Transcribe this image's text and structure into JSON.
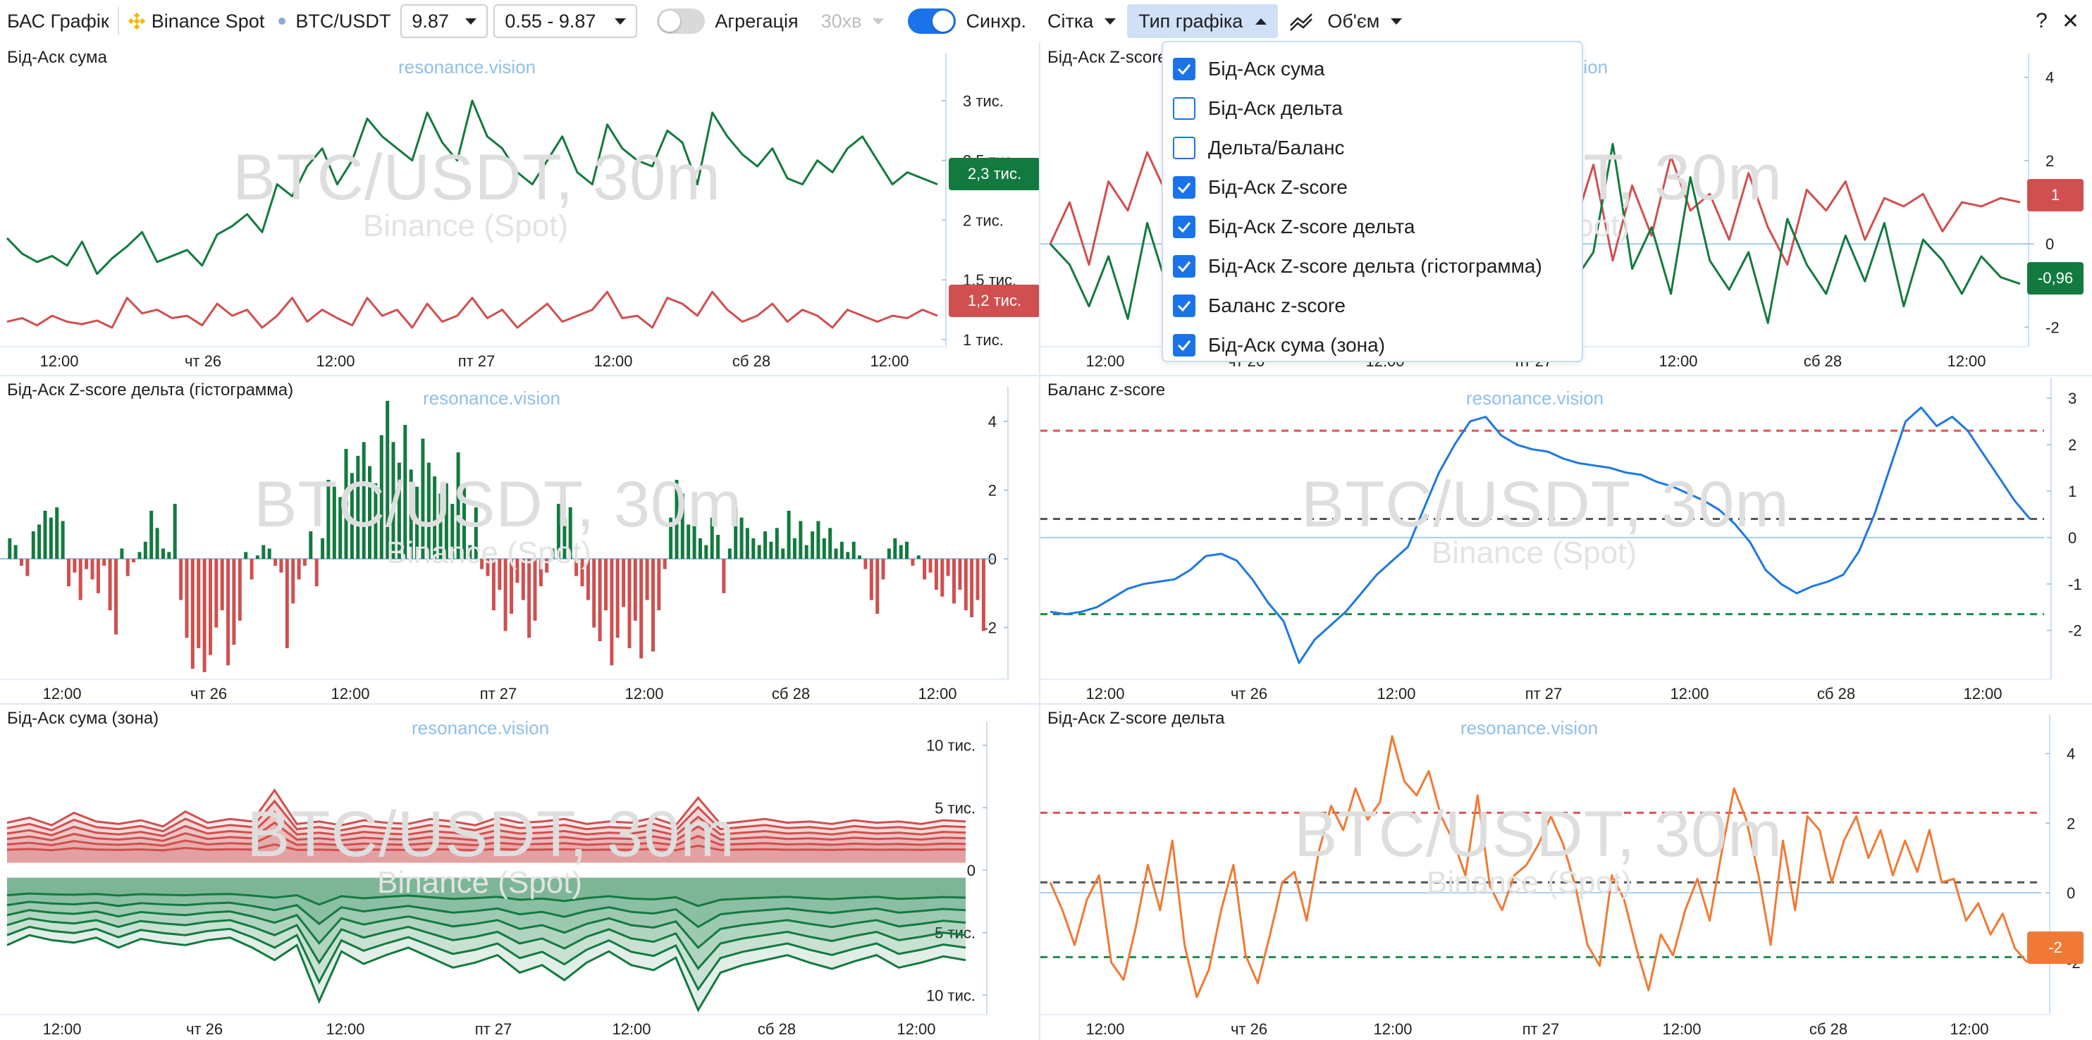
{
  "toolbar": {
    "app_title": "БАС Графік",
    "exchange": "Binance Spot",
    "symbol": "BTC/USDT",
    "value_select": "9.87",
    "range_select": "0.55 - 9.87",
    "aggregation_label": "Агрегація",
    "aggregation_value": "30хв",
    "sync_label": "Синхр.",
    "grid_label": "Сітка",
    "chart_type_label": "Тип графіка",
    "volume_label": "Об'єм",
    "help_label": "?",
    "close_label": "✕"
  },
  "dropdown": {
    "items": [
      {
        "label": "Бід-Аск сума",
        "checked": true
      },
      {
        "label": "Бід-Аск дельта",
        "checked": false
      },
      {
        "label": "Дельта/Баланс",
        "checked": false
      },
      {
        "label": "Бід-Аск Z-score",
        "checked": true
      },
      {
        "label": "Бід-Аск Z-score дельта",
        "checked": true
      },
      {
        "label": "Бід-Аск Z-score дельта (гістограмма)",
        "checked": true
      },
      {
        "label": "Баланс z-score",
        "checked": true
      },
      {
        "label": "Бід-Аск сума (зона)",
        "checked": true
      }
    ]
  },
  "watermark": {
    "site": "resonance.vision",
    "pair": "BTC/USDT, 30m",
    "exchange": "Binance (Spot)"
  },
  "colors": {
    "green": "#137a3f",
    "red": "#d04f4f",
    "blue": "#1e78e0",
    "orange": "#f07a35",
    "accent": "#1a73e8"
  },
  "panels": [
    {
      "title": "Бід-Аск сума",
      "badges": [
        "2,3 тис.",
        "1,2 тис."
      ]
    },
    {
      "title": "Бід-Аск Z-score",
      "badges": [
        "1",
        "-0,96"
      ]
    },
    {
      "title": "Бід-Аск Z-score дельта (гістограмма)",
      "badges": []
    },
    {
      "title": "Баланс z-score",
      "badges": []
    },
    {
      "title": "Бід-Аск сума (зона)",
      "badges": []
    },
    {
      "title": "Бід-Аск Z-score дельта",
      "badges": [
        "-2"
      ]
    }
  ],
  "chart_data": [
    {
      "type": "line",
      "title": "Бід-Аск сума",
      "x_ticks": [
        "12:00",
        "чт 26",
        "12:00",
        "пт 27",
        "12:00",
        "сб 28",
        "12:00"
      ],
      "y_ticks": [
        "1 тис.",
        "1,5 тис.",
        "2 тис.",
        "2,5 тис.",
        "3 тис."
      ],
      "ylim": [
        1000,
        3300
      ],
      "series": [
        {
          "color": "#137a3f",
          "values": [
            1850,
            1720,
            1650,
            1700,
            1620,
            1820,
            1550,
            1680,
            1780,
            1900,
            1650,
            1700,
            1750,
            1620,
            1880,
            1950,
            2050,
            1900,
            2300,
            2200,
            2450,
            2600,
            2300,
            2500,
            2850,
            2700,
            2600,
            2500,
            2900,
            2650,
            2500,
            3000,
            2700,
            2600,
            2400,
            2300,
            2500,
            2700,
            2400,
            2300,
            2800,
            2600,
            2500,
            2450,
            2750,
            2650,
            2300,
            2900,
            2700,
            2550,
            2450,
            2600,
            2350,
            2300,
            2500,
            2400,
            2600,
            2700,
            2500,
            2300,
            2400,
            2350,
            2300
          ]
        },
        {
          "color": "#d04f4f",
          "values": [
            1150,
            1180,
            1120,
            1200,
            1150,
            1130,
            1160,
            1100,
            1350,
            1220,
            1250,
            1180,
            1200,
            1120,
            1300,
            1200,
            1250,
            1100,
            1200,
            1350,
            1150,
            1250,
            1180,
            1120,
            1350,
            1200,
            1250,
            1100,
            1300,
            1150,
            1200,
            1350,
            1180,
            1250,
            1100,
            1200,
            1300,
            1150,
            1200,
            1250,
            1400,
            1180,
            1200,
            1100,
            1350,
            1300,
            1200,
            1400,
            1250,
            1150,
            1200,
            1300,
            1150,
            1250,
            1200,
            1100,
            1250,
            1200,
            1150,
            1200,
            1180,
            1250,
            1200
          ]
        }
      ],
      "last_values": [
        "2,3 тис.",
        "1,2 тис."
      ]
    },
    {
      "type": "line",
      "title": "Бід-Аск Z-score",
      "x_ticks": [
        "12:00",
        "чт 26",
        "12:00",
        "пт 27",
        "12:00",
        "сб 28",
        "12:00"
      ],
      "y_ticks": [
        "-2",
        "0",
        "2",
        "4"
      ],
      "ylim": [
        -2.3,
        4.3
      ],
      "series": [
        {
          "color": "#d04f4f",
          "values": [
            0,
            1,
            -0.5,
            1.5,
            0.8,
            2.2,
            1.2,
            -0.5,
            0.5,
            1,
            0.2,
            1.8,
            0.5,
            -0.6,
            2.2,
            1.3,
            0.6,
            1.8,
            0.2,
            -0.8,
            1.2,
            2.6,
            0.5,
            1,
            -0.5,
            1.5,
            2.2,
            0.4,
            1.9,
            -0.4,
            1.4,
            0.2,
            2.1,
            0.8,
            1.2,
            0.1,
            1.7,
            0.4,
            -0.5,
            1.3,
            0.8,
            1.5,
            0.1,
            1.1,
            0.9,
            1.2,
            0.3,
            1,
            0.9,
            1.1,
            1
          ]
        },
        {
          "color": "#137a3f",
          "values": [
            0,
            -0.5,
            -1.5,
            -0.3,
            -1.8,
            0.5,
            -1,
            0.8,
            -0.2,
            -1.5,
            0.3,
            -0.8,
            1.2,
            -0.3,
            -1,
            0.4,
            -1.6,
            -0.2,
            0.6,
            -1.2,
            0.2,
            1,
            -0.8,
            0.3,
            -0.3,
            -1.4,
            0.6,
            -0.9,
            -0.2,
            2.4,
            -0.6,
            0.4,
            -1.2,
            1.6,
            -0.4,
            -1.1,
            -0.2,
            -1.9,
            0.6,
            -0.5,
            -1.2,
            0.2,
            -0.9,
            0.5,
            -1.5,
            0.1,
            -0.4,
            -1.2,
            -0.3,
            -0.8,
            -0.96
          ]
        }
      ],
      "last_values": [
        "1",
        "-0,96"
      ]
    },
    {
      "type": "bar",
      "title": "Бід-Аск Z-score дельта (гістограмма)",
      "x_ticks": [
        "12:00",
        "чт 26",
        "12:00",
        "пт 27",
        "12:00",
        "сб 28",
        "12:00"
      ],
      "y_ticks": [
        "-2",
        "0",
        "2",
        "4"
      ],
      "ylim": [
        -3.3,
        4.7
      ],
      "values": [
        0.6,
        0.4,
        -0.2,
        -0.5,
        0.8,
        1,
        1.4,
        1.2,
        1.5,
        1.1,
        -0.8,
        -0.4,
        -1.2,
        -0.3,
        -0.6,
        -1,
        -0.2,
        -1.5,
        -2.2,
        0.3,
        -0.5,
        -0.1,
        0.2,
        0.5,
        1.4,
        0.9,
        0.3,
        0.2,
        1.6,
        -1.2,
        -2.3,
        -3.2,
        -2.6,
        -3.3,
        -2.8,
        -2,
        -1.5,
        -3.1,
        -2.5,
        -1.8,
        0.2,
        -0.6,
        0.1,
        0.4,
        0.3,
        -0.2,
        -0.4,
        -2.6,
        -1.3,
        -0.6,
        -0.2,
        0.8,
        -0.8,
        0.6,
        2.3,
        2.1,
        1.8,
        3.2,
        2.5,
        3,
        3.4,
        2.7,
        2.2,
        3.6,
        4.6,
        3.4,
        2.8,
        3.9,
        2.6,
        2.1,
        3.5,
        2.8,
        2.4,
        1.9,
        2.2,
        1.6,
        3.1,
        2.2,
        0.4,
        1.5,
        -0.3,
        -0.5,
        -1.5,
        -0.9,
        -2.1,
        -1.6,
        -0.7,
        -1.2,
        -2.3,
        -1.8,
        -0.8,
        -0.4,
        0.3,
        1.6,
        1.2,
        1.5,
        -0.5,
        -0.8,
        -1.2,
        -2,
        -2.4,
        -1.5,
        -3.1,
        -2.3,
        -1.4,
        -2.6,
        -1.8,
        -2.9,
        -1.2,
        -2.7,
        -1.5,
        -0.3,
        1.2,
        2.3,
        1.9,
        1,
        1.3,
        0.6,
        0.4,
        1.2,
        0.7,
        -1,
        0.3,
        1.5,
        1.2,
        0.9,
        0.6,
        0.4,
        0.8,
        0.5,
        0.9,
        0.3,
        1.4,
        0.6,
        1.1,
        0.4,
        0.8,
        1.1,
        0.6,
        0.9,
        0.3,
        0.5,
        0.2,
        0.5,
        0.1,
        -0.3,
        -1.2,
        -1.6,
        -0.6,
        0.3,
        0.6,
        0.4,
        0.5,
        -0.2,
        0.1,
        -0.6,
        -0.4,
        -0.9,
        -1.1,
        -0.5,
        -1.3,
        -0.9,
        -1.5,
        -1.7,
        -1.2,
        -2.1
      ]
    },
    {
      "type": "line",
      "title": "Баланс z-score",
      "x_ticks": [
        "12:00",
        "чт 26",
        "12:00",
        "пт 27",
        "12:00",
        "сб 28",
        "12:00"
      ],
      "y_ticks": [
        "-2",
        "-1",
        "0",
        "1",
        "2",
        "3"
      ],
      "ylim": [
        -2.9,
        3.2
      ],
      "series": [
        {
          "color": "#1e78e0",
          "values": [
            -1.6,
            -1.65,
            -1.6,
            -1.5,
            -1.3,
            -1.1,
            -1,
            -0.95,
            -0.9,
            -0.7,
            -0.4,
            -0.35,
            -0.5,
            -0.9,
            -1.4,
            -1.8,
            -2.7,
            -2.2,
            -1.9,
            -1.6,
            -1.2,
            -0.8,
            -0.5,
            -0.2,
            0.6,
            1.4,
            2,
            2.5,
            2.6,
            2.2,
            2,
            1.9,
            1.85,
            1.7,
            1.6,
            1.55,
            1.5,
            1.4,
            1.35,
            1.2,
            1.1,
            0.95,
            0.8,
            0.6,
            0.3,
            -0.1,
            -0.7,
            -1,
            -1.2,
            -1.05,
            -0.95,
            -0.8,
            -0.3,
            0.5,
            1.5,
            2.5,
            2.8,
            2.4,
            2.6,
            2.3,
            1.8,
            1.3,
            0.8,
            0.4
          ]
        },
        {
          "name": "upper",
          "color": "#e05555",
          "dashed": true,
          "values": [
            2.3
          ]
        },
        {
          "name": "mid",
          "color": "#555555",
          "dashed": true,
          "values": [
            0.4
          ]
        },
        {
          "name": "lower",
          "color": "#1f8a4c",
          "dashed": true,
          "values": [
            -1.65
          ]
        }
      ]
    },
    {
      "type": "area",
      "title": "Бід-Аск сума (зона)",
      "x_ticks": [
        "12:00",
        "чт 26",
        "12:00",
        "пт 27",
        "12:00",
        "сб 28",
        "12:00"
      ],
      "y_ticks": [
        "10 тис.",
        "5 тис.",
        "0",
        "5 тис.",
        "10 тис."
      ],
      "ylim": [
        -11000,
        11000
      ],
      "series": [
        {
          "name": "ask",
          "color": "#d04f4f",
          "values": [
            3800,
            4200,
            3600,
            4600,
            3900,
            3700,
            4000,
            3500,
            4700,
            3800,
            4100,
            3900,
            6400,
            3700,
            3900,
            3600,
            4000,
            3800,
            3700,
            4100,
            3900,
            3600,
            4200,
            3800,
            3900,
            4100,
            3700,
            3900,
            3800,
            4200,
            3600,
            5800,
            3700,
            3900,
            4100,
            3800,
            3900,
            3700,
            4000,
            3800,
            3900,
            3700,
            4000,
            3900
          ]
        },
        {
          "name": "bid",
          "color": "#137a3f",
          "values": [
            -6000,
            -5200,
            -5600,
            -5800,
            -5400,
            -6200,
            -5500,
            -5800,
            -6000,
            -5600,
            -5400,
            -6200,
            -7200,
            -6000,
            -10500,
            -6500,
            -7500,
            -6800,
            -6200,
            -7000,
            -7800,
            -7400,
            -6800,
            -8200,
            -7600,
            -8800,
            -7400,
            -6500,
            -7600,
            -8000,
            -7000,
            -11200,
            -8200,
            -7600,
            -7200,
            -6800,
            -7400,
            -7900,
            -7300,
            -6800,
            -7800,
            -7400,
            -6900,
            -7200
          ]
        }
      ]
    },
    {
      "type": "line",
      "title": "Бід-Аск Z-score дельта",
      "x_ticks": [
        "12:00",
        "чт 26",
        "12:00",
        "пт 27",
        "12:00",
        "сб 28",
        "12:00"
      ],
      "y_ticks": [
        "-2",
        "0",
        "2",
        "4"
      ],
      "ylim": [
        -3.3,
        4.8
      ],
      "series": [
        {
          "color": "#f07a35",
          "values": [
            0.3,
            -0.5,
            -1.5,
            -0.2,
            0.5,
            -2,
            -2.5,
            -1,
            0.8,
            -0.5,
            1.5,
            -1.5,
            -3,
            -2.2,
            -0.5,
            0.8,
            -1.8,
            -2.6,
            -1.2,
            0.3,
            0.6,
            -0.8,
            1.2,
            2.5,
            1.8,
            3,
            2.1,
            2.6,
            4.5,
            3.2,
            2.8,
            3.5,
            2.2,
            1.5,
            0.5,
            2.8,
            0.2,
            -0.5,
            0.5,
            0.8,
            1.4,
            2.2,
            1.4,
            0.2,
            -1.5,
            -2.1,
            0.5,
            -0.2,
            -1.6,
            -2.8,
            -1.2,
            -1.8,
            -0.5,
            0.4,
            -0.8,
            1.2,
            3,
            2.1,
            0.5,
            -1.5,
            1.5,
            -0.5,
            2.2,
            1.8,
            0.3,
            1.5,
            2.2,
            1,
            1.8,
            0.5,
            1.5,
            0.6,
            1.8,
            0.3,
            0.4,
            -0.8,
            -0.3,
            -1.2,
            -0.6,
            -1.6,
            -2
          ]
        },
        {
          "name": "upper",
          "color": "#e05555",
          "dashed": true,
          "values": [
            2.3
          ]
        },
        {
          "name": "mid",
          "color": "#555555",
          "dashed": true,
          "values": [
            0.3
          ]
        },
        {
          "name": "lower",
          "color": "#1f8a4c",
          "dashed": true,
          "values": [
            -1.85
          ]
        }
      ],
      "last_values": [
        "-2"
      ]
    }
  ]
}
